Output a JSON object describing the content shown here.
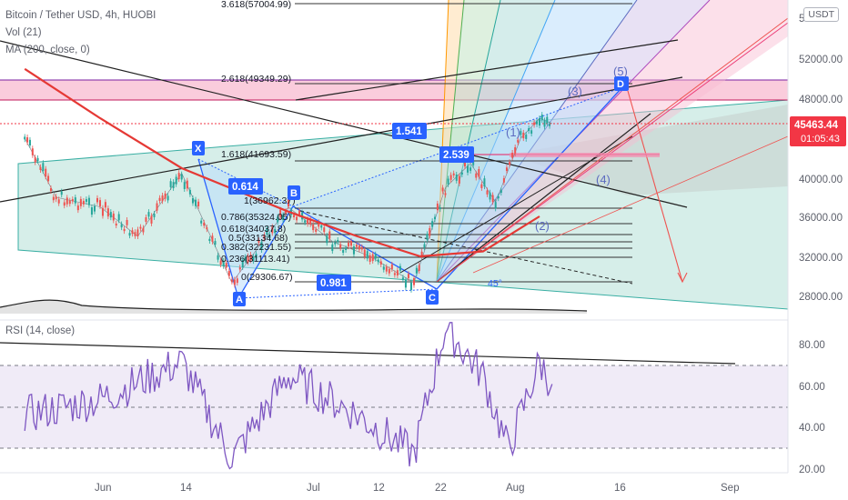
{
  "legend": {
    "symbol": "Bitcoin / Tether USD, 4h, HUOBI",
    "volume": "Vol (21)",
    "ma": "MA (200, close, 0)",
    "rsi": "RSI (14, close)"
  },
  "currency_badge": "USDT",
  "last_price": {
    "value": "45463.44",
    "countdown": "01:05:43"
  },
  "colors": {
    "price_badge": "#f23645",
    "pattern_label": "#2962ff",
    "ma_line": "#e53935",
    "rsi_line": "#7e57c2",
    "rsi_band": "#ede7f6",
    "fib_band": "#f8bbd0",
    "channel_fill": "#c8e8e2"
  },
  "fib_labels": [
    "3.618(57004.99)",
    "2.618(49349.29)",
    "1.618(41693.59)",
    "1(36962.37)",
    "0.786(35324.05)",
    "0.618(34037.8)",
    "0.5(33134.68)",
    "0.382(32231.55)",
    "0.236(31113.41)",
    "0(29306.67)"
  ],
  "pattern_points": [
    "X",
    "A",
    "B",
    "C",
    "D"
  ],
  "ratio_labels": [
    "0.614",
    "0.981",
    "1.541",
    "2.539"
  ],
  "wave_labels": [
    "(1)",
    "(2)",
    "(3)",
    "(4)",
    "(5)"
  ],
  "angle_label": "45°",
  "chart_data": [
    {
      "type": "line",
      "title": "Bitcoin / Tether USD, 4h, HUOBI",
      "y_axis_ticks": [
        "52000.00",
        "48000.00",
        "40000.00",
        "36000.00",
        "32000.00",
        "28000.00"
      ],
      "x_axis_ticks": [
        "Jun",
        "14",
        "Jul",
        "12",
        "22",
        "Aug",
        "16",
        "Sep"
      ],
      "ylim": [
        26000,
        57000
      ],
      "harmonic_points": [
        {
          "label": "X",
          "date": "Jun 14",
          "value": 40500
        },
        {
          "label": "A",
          "date": "Jun 22",
          "value": 29300
        },
        {
          "label": "B",
          "date": "Jul 1",
          "value": 36960
        },
        {
          "label": "C",
          "date": "Jul 21",
          "value": 29300
        },
        {
          "label": "D",
          "date": "Aug 12",
          "value": 49300
        }
      ],
      "series": [
        {
          "name": "MA (200, close, 0)",
          "dates": [
            "May 20",
            "Jun 1",
            "Jun 14",
            "Jul 1",
            "Jul 12",
            "Jul 22",
            "Aug 1",
            "Aug 10"
          ],
          "values": [
            51000,
            46000,
            41000,
            36500,
            34000,
            32000,
            32500,
            36000
          ]
        },
        {
          "name": "Bitcoin / Tether USD",
          "dates": [
            "May 20",
            "May 25",
            "Jun 1",
            "Jun 7",
            "Jun 14",
            "Jun 22",
            "Jul 1",
            "Jul 8",
            "Jul 14",
            "Jul 21",
            "Jul 26",
            "Jul 30",
            "Aug 3",
            "Aug 7",
            "Aug 10",
            "Aug 12"
          ],
          "values": [
            44000,
            38000,
            37000,
            34000,
            40500,
            29300,
            36960,
            33500,
            32000,
            29300,
            39000,
            41500,
            37500,
            44000,
            46000,
            45463
          ]
        }
      ],
      "current_price": 45463.44
    },
    {
      "type": "line",
      "title": "RSI (14, close)",
      "y_axis_ticks": [
        "80.00",
        "60.00",
        "40.00",
        "20.00"
      ],
      "ylim": [
        20,
        90
      ],
      "levels": [
        70,
        50,
        30
      ],
      "series": [
        {
          "name": "RSI (14, close)",
          "dates": [
            "May 20",
            "Jun 1",
            "Jun 14",
            "Jun 22",
            "Jul 1",
            "Jul 12",
            "Jul 21",
            "Jul 26",
            "Aug 1",
            "Aug 5",
            "Aug 10",
            "Aug 12"
          ],
          "values": [
            48,
            55,
            72,
            28,
            66,
            48,
            30,
            88,
            66,
            32,
            72,
            62
          ]
        }
      ]
    }
  ]
}
